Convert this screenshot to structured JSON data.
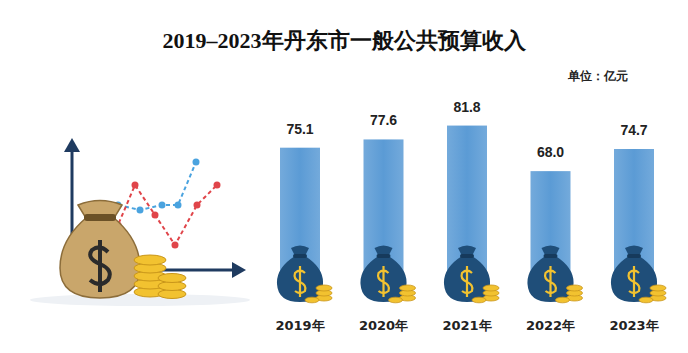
{
  "chart_data": {
    "type": "bar",
    "title": "2019–2023年丹东市一般公共预算收入",
    "ylabel": "单位：亿元",
    "categories": [
      "2019年",
      "2020年",
      "2021年",
      "2022年",
      "2023年"
    ],
    "values": [
      75.1,
      77.6,
      81.8,
      68.0,
      74.7
    ],
    "value_labels": [
      "75.1",
      "77.6",
      "81.8",
      "68.0",
      "74.7"
    ],
    "color": "#5b9bd5",
    "ylim": [
      32,
      85
    ],
    "data_labels": true,
    "tick_labels": "x"
  }
}
